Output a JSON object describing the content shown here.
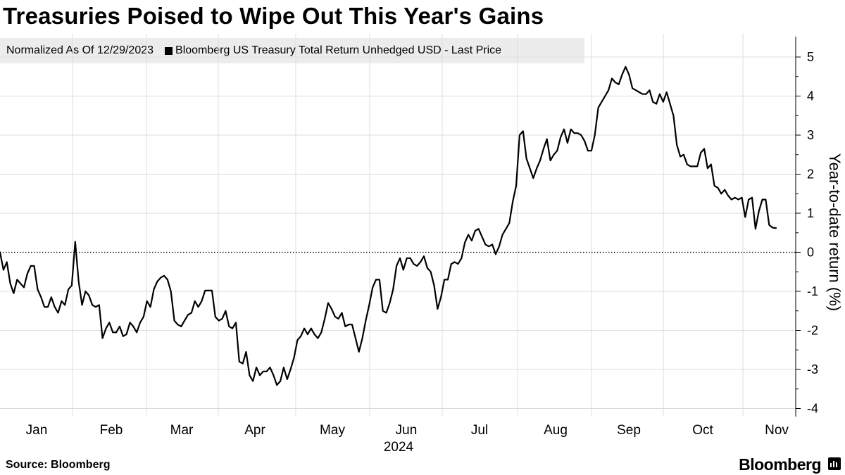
{
  "title": "Treasuries Poised to Wipe Out This Year's Gains",
  "legend": {
    "note": "Normalized As Of 12/29/2023",
    "series_label": "Bloomberg US Treasury Total Return Unhedged USD - Last Price"
  },
  "footer": {
    "source": "Source: Bloomberg",
    "brand": "Bloomberg"
  },
  "colors": {
    "line": "#000000",
    "grid": "#dcdcdc",
    "legend_bg": "#ececec"
  },
  "chart_data": {
    "type": "line",
    "title": "Treasuries Poised to Wipe Out This Year's Gains",
    "ylabel": "Year-to-date return (%)",
    "xlabel": "2024",
    "ylim": [
      -4.3,
      5.6
    ],
    "yticks": [
      5,
      4,
      3,
      2,
      1,
      0,
      -1,
      -2,
      -3,
      -4
    ],
    "y_axis_position": "right",
    "grid": true,
    "zero_line": "dotted",
    "months": [
      "Jan",
      "Feb",
      "Mar",
      "Apr",
      "May",
      "Jun",
      "Jul",
      "Aug",
      "Sep",
      "Oct",
      "Nov"
    ],
    "year_label": "2024",
    "series": [
      {
        "name": "Bloomberg US Treasury Total Return Unhedged USD - Last Price",
        "values": [
          0,
          -0.45,
          -0.25,
          -0.8,
          -1.05,
          -0.7,
          -0.8,
          -0.9,
          -0.55,
          -0.35,
          -0.35,
          -0.95,
          -1.15,
          -1.4,
          -1.4,
          -1.15,
          -1.4,
          -1.55,
          -1.25,
          -1.35,
          -0.95,
          -0.85,
          0.27,
          -0.75,
          -1.35,
          -1.0,
          -1.1,
          -1.35,
          -1.4,
          -1.35,
          -2.2,
          -1.95,
          -1.8,
          -2.05,
          -2.05,
          -1.9,
          -2.15,
          -2.1,
          -1.8,
          -1.9,
          -2.05,
          -1.8,
          -1.65,
          -1.25,
          -1.4,
          -0.95,
          -0.75,
          -0.65,
          -0.6,
          -0.7,
          -1.0,
          -1.75,
          -1.85,
          -1.9,
          -1.75,
          -1.6,
          -1.55,
          -1.25,
          -1.4,
          -1.25,
          -0.98,
          -0.98,
          -0.98,
          -1.65,
          -1.75,
          -1.7,
          -1.5,
          -1.9,
          -1.95,
          -1.8,
          -2.8,
          -2.85,
          -2.55,
          -3.15,
          -3.3,
          -2.95,
          -3.15,
          -3.05,
          -3.05,
          -2.95,
          -3.15,
          -3.4,
          -3.3,
          -2.95,
          -3.25,
          -3.0,
          -2.7,
          -2.25,
          -2.15,
          -1.95,
          -2.1,
          -1.95,
          -2.1,
          -2.2,
          -2.05,
          -1.7,
          -1.3,
          -1.45,
          -1.65,
          -1.7,
          -1.55,
          -1.9,
          -1.85,
          -1.85,
          -2.2,
          -2.55,
          -2.2,
          -1.75,
          -1.35,
          -0.9,
          -0.7,
          -0.7,
          -1.5,
          -1.55,
          -1.3,
          -0.95,
          -0.35,
          -0.15,
          -0.45,
          -0.15,
          -0.15,
          -0.3,
          -0.35,
          -0.25,
          -0.1,
          -0.4,
          -0.5,
          -0.85,
          -1.45,
          -1.15,
          -0.7,
          -0.7,
          -0.3,
          -0.25,
          -0.3,
          -0.15,
          0.25,
          0.45,
          0.3,
          0.55,
          0.6,
          0.4,
          0.2,
          0.15,
          0.2,
          -0.05,
          0.15,
          0.45,
          0.6,
          0.75,
          1.3,
          1.7,
          3.0,
          3.1,
          2.4,
          2.15,
          1.9,
          2.15,
          2.35,
          2.65,
          2.9,
          2.35,
          2.5,
          2.6,
          2.95,
          3.15,
          2.8,
          3.15,
          3.05,
          3.05,
          3.0,
          2.85,
          2.6,
          2.6,
          3.0,
          3.7,
          3.85,
          4.0,
          4.15,
          4.45,
          4.35,
          4.3,
          4.55,
          4.75,
          4.55,
          4.2,
          4.15,
          4.1,
          4.05,
          4.05,
          4.15,
          3.85,
          3.8,
          4.05,
          3.85,
          4.1,
          3.8,
          3.5,
          2.75,
          2.45,
          2.5,
          2.25,
          2.2,
          2.2,
          2.2,
          2.55,
          2.65,
          2.15,
          2.25,
          1.7,
          1.65,
          1.5,
          1.6,
          1.45,
          1.35,
          1.4,
          1.35,
          1.4,
          0.9,
          1.35,
          1.4,
          0.6,
          1.05,
          1.35,
          1.35,
          0.7,
          0.63,
          0.62
        ]
      }
    ]
  }
}
